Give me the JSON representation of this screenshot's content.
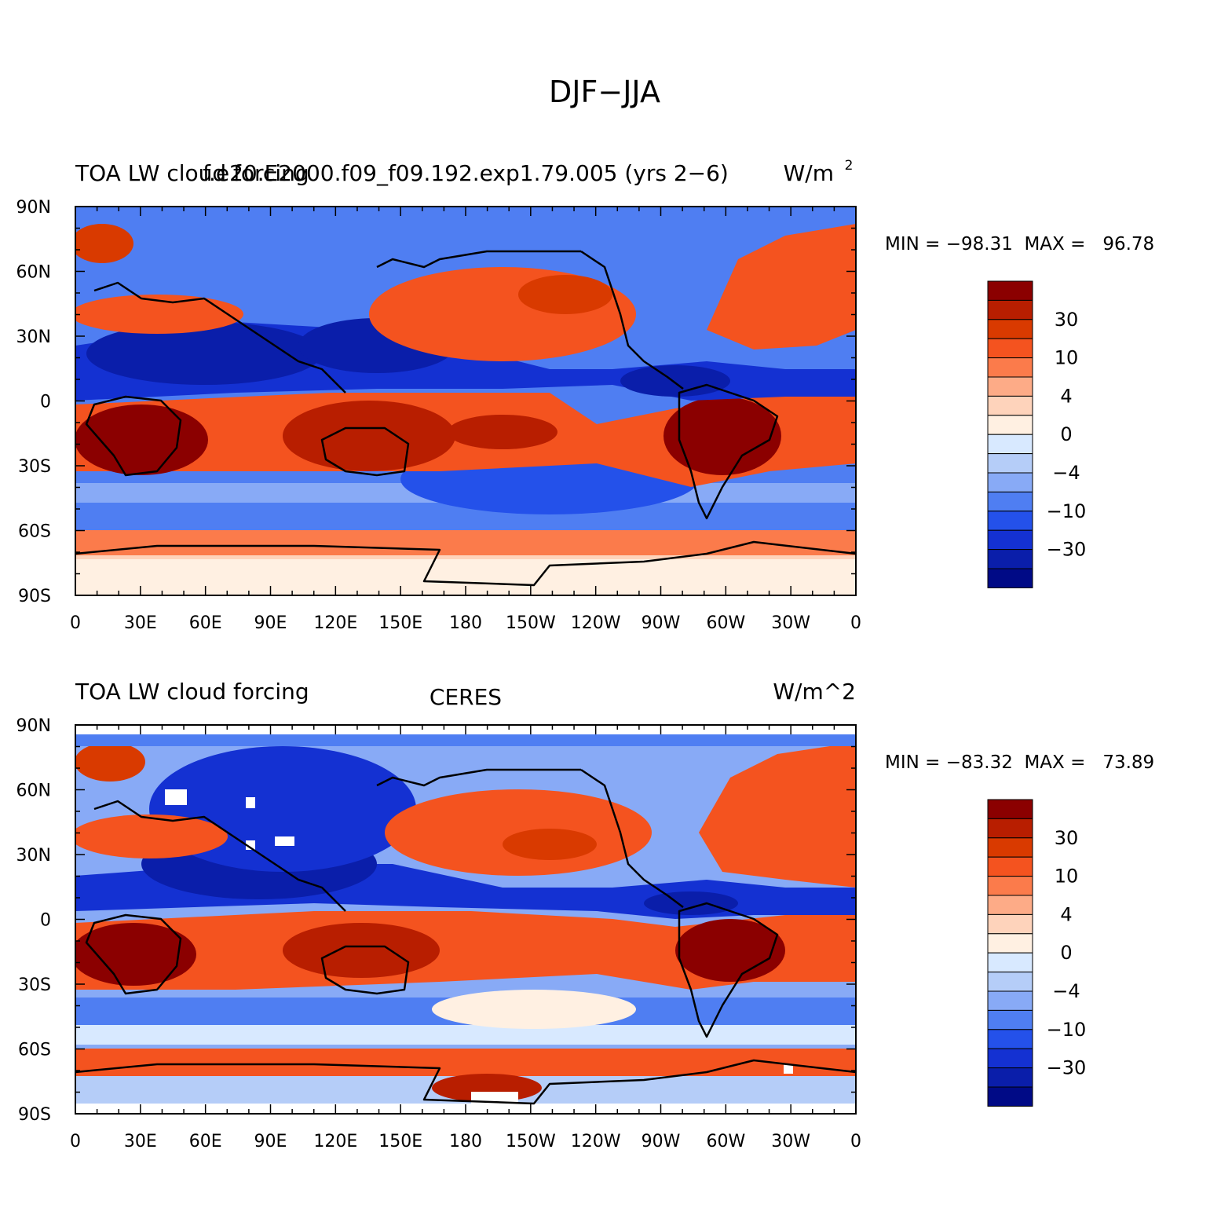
{
  "figure": {
    "title": "DJF−JJA",
    "lat_ticks": [
      "90N",
      "60N",
      "30N",
      "0",
      "30S",
      "60S",
      "90S"
    ],
    "lon_ticks": [
      "0",
      "30E",
      "60E",
      "90E",
      "120E",
      "150E",
      "180",
      "150W",
      "120W",
      "90W",
      "60W",
      "30W",
      "0"
    ],
    "colorbar_labels": [
      "30",
      "10",
      "4",
      "0",
      "−4",
      "−10",
      "−30"
    ],
    "colors": [
      "#8b0000",
      "#b81e00",
      "#d93a00",
      "#f4531f",
      "#fb7b4b",
      "#fdab87",
      "#fed3bb",
      "#fff0e2",
      "#d8e9ff",
      "#b5cdf8",
      "#88aaf6",
      "#4f7ef2",
      "#2451ea",
      "#1431d2",
      "#0a1eaa",
      "#000a86"
    ]
  },
  "panels": [
    {
      "left_title": "TOA LW cloud forcing",
      "center_title": "f.e20.E2000.f09_f09.192.exp1.79.005 (yrs 2−6)",
      "units": "W/m",
      "units_sup": "2",
      "stats": "MIN = −98.31  MAX =   96.78"
    },
    {
      "left_title": "TOA LW cloud forcing",
      "center_title": "CERES",
      "units": "W/m^2",
      "units_sup": "",
      "stats": "MIN = −83.32  MAX =   73.89"
    }
  ]
}
